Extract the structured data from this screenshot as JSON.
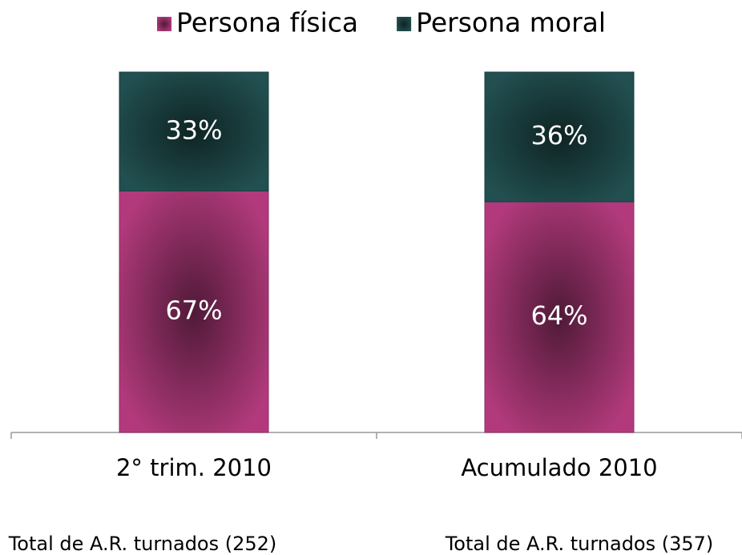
{
  "chart_data": {
    "type": "stacked_bar",
    "categories": [
      "2° trim. 2010",
      "Acumulado 2010"
    ],
    "series": [
      {
        "name": "Persona física",
        "color": "#b23a7c",
        "values": [
          67,
          64
        ],
        "value_labels": [
          "67%",
          "64%"
        ]
      },
      {
        "name": "Persona moral",
        "color": "#224f50",
        "values": [
          33,
          36
        ],
        "value_labels": [
          "33%",
          "36%"
        ]
      }
    ],
    "ylim": [
      0,
      100
    ],
    "legend": "top",
    "annotations": [
      "Total de A.R. turnados (252)",
      "Total de A.R. turnados (357)"
    ]
  }
}
